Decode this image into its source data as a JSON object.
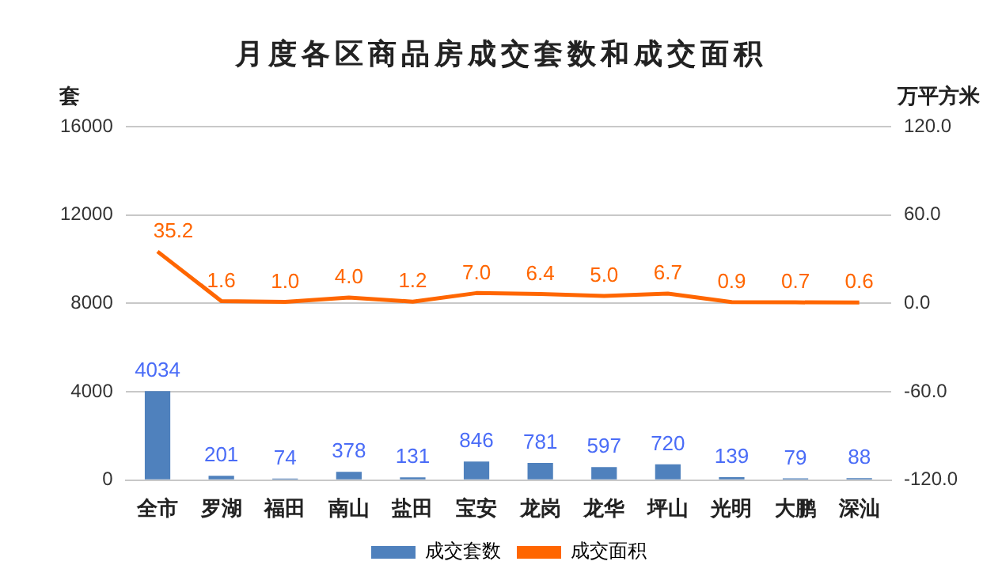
{
  "chart_data": {
    "type": "bar",
    "title": "月度各区商品房成交套数和成交面积",
    "ylabel": "套",
    "y2label": "万平方米",
    "categories": [
      "全市",
      "罗湖",
      "福田",
      "南山",
      "盐田",
      "宝安",
      "龙岗",
      "龙华",
      "坪山",
      "光明",
      "大鹏",
      "深汕"
    ],
    "series": [
      {
        "name": "成交套数",
        "color": "#4f81bd",
        "values": [
          4034,
          201,
          74,
          378,
          131,
          846,
          781,
          597,
          720,
          139,
          79,
          88
        ],
        "value_labels": [
          "4034",
          "201",
          "74",
          "378",
          "131",
          "846",
          "781",
          "597",
          "720",
          "139",
          "79",
          "88"
        ]
      },
      {
        "name": "成交面积",
        "type": "line",
        "axis": "y2",
        "color": "#ff6600",
        "values": [
          35.2,
          1.6,
          1.0,
          4.0,
          1.2,
          7.0,
          6.4,
          5.0,
          6.7,
          0.9,
          0.7,
          0.6
        ],
        "value_labels": [
          "35.2",
          "1.6",
          "1.0",
          "4.0",
          "1.2",
          "7.0",
          "6.4",
          "5.0",
          "6.7",
          "0.9",
          "0.7",
          "0.6"
        ]
      }
    ],
    "ylim": [
      0,
      16000
    ],
    "yticks": [
      0,
      4000,
      8000,
      12000,
      16000
    ],
    "y2lim": [
      -120,
      120
    ],
    "y2ticks": [
      {
        "value": -120,
        "label": "-120.0"
      },
      {
        "value": -60,
        "label": "-60.0"
      },
      {
        "value": 0,
        "label": "0.0"
      },
      {
        "value": 60,
        "label": "60.0"
      },
      {
        "value": 120,
        "label": "120.0"
      }
    ],
    "grid": "y",
    "legend": "bottom",
    "marker": "none",
    "line_style": "solid"
  }
}
